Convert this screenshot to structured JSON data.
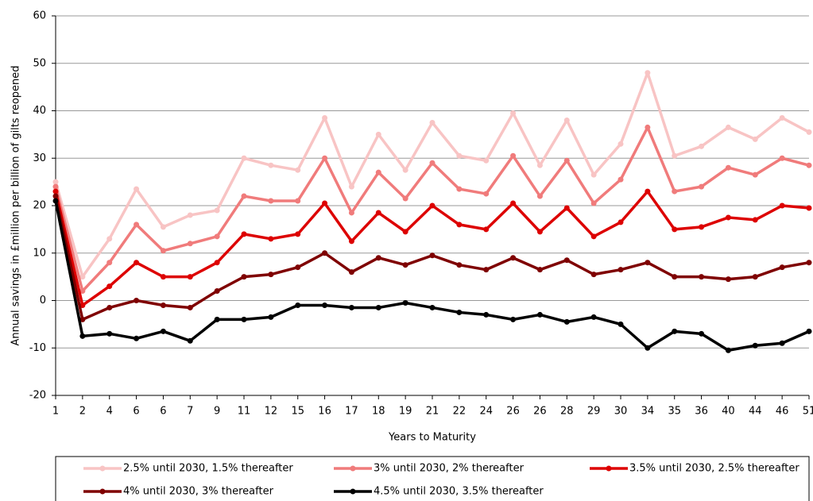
{
  "chart_data": {
    "type": "line",
    "y_label": "Annual savings in £million  per billion of gilts reopened",
    "x_label": "Years to Maturity",
    "categories": [
      "1",
      "2",
      "4",
      "6",
      "6",
      "7",
      "9",
      "11",
      "12",
      "15",
      "16",
      "17",
      "18",
      "19",
      "21",
      "22",
      "24",
      "26",
      "26",
      "28",
      "29",
      "30",
      "34",
      "35",
      "36",
      "40",
      "44",
      "46",
      "51"
    ],
    "series": [
      {
        "name": "2.5% until 2030, 1.5% thereafter",
        "color": "#f8c4c4",
        "values": [
          25,
          5,
          13,
          23.5,
          15.5,
          18,
          19,
          30,
          28.5,
          27.5,
          38.5,
          24,
          35,
          27.5,
          37.5,
          30.5,
          29.5,
          39.5,
          28.5,
          38,
          26.5,
          33,
          48,
          30.5,
          32.5,
          36.5,
          34,
          38.5,
          35.5
        ]
      },
      {
        "name": "3% until 2030, 2% thereafter",
        "color": "#f07b7b",
        "values": [
          24,
          2,
          8,
          16,
          10.5,
          12,
          13.5,
          22,
          21,
          21,
          30,
          18.5,
          27,
          21.5,
          29,
          23.5,
          22.5,
          30.5,
          22,
          29.5,
          20.5,
          25.5,
          36.5,
          23,
          24,
          28,
          26.5,
          30,
          28.5
        ]
      },
      {
        "name": "3.5% until 2030, 2.5% thereafter",
        "color": "#dd0000",
        "values": [
          23,
          -1,
          3,
          8,
          5,
          5,
          8,
          14,
          13,
          14,
          20.5,
          12.5,
          18.5,
          14.5,
          20,
          16,
          15,
          20.5,
          14.5,
          19.5,
          13.5,
          16.5,
          23,
          15,
          15.5,
          17.5,
          17,
          20,
          19.5
        ]
      },
      {
        "name": "4% until 2030, 3% thereafter",
        "color": "#7f0000",
        "values": [
          22,
          -4,
          -1.5,
          0,
          -1,
          -1.5,
          2,
          5,
          5.5,
          7,
          10,
          6,
          9,
          7.5,
          9.5,
          7.5,
          6.5,
          9,
          6.5,
          8.5,
          5.5,
          6.5,
          8,
          5,
          5,
          4.5,
          5,
          7,
          8
        ]
      },
      {
        "name": "4.5% until 2030, 3.5% thereafter",
        "color": "#000000",
        "values": [
          21,
          -7.5,
          -7,
          -8,
          -6.5,
          -8.5,
          -4,
          -4,
          -3.5,
          -1,
          -1,
          -1.5,
          -1.5,
          -0.5,
          -1.5,
          -2.5,
          -3,
          -4,
          -3,
          -4.5,
          -3.5,
          -5,
          -10,
          -6.5,
          -7,
          -10.5,
          -9.5,
          -9,
          -6.5
        ]
      }
    ],
    "ylim": [
      -20,
      60
    ],
    "yticks": [
      -20,
      -10,
      0,
      10,
      20,
      30,
      40,
      50,
      60
    ],
    "grid": true
  }
}
